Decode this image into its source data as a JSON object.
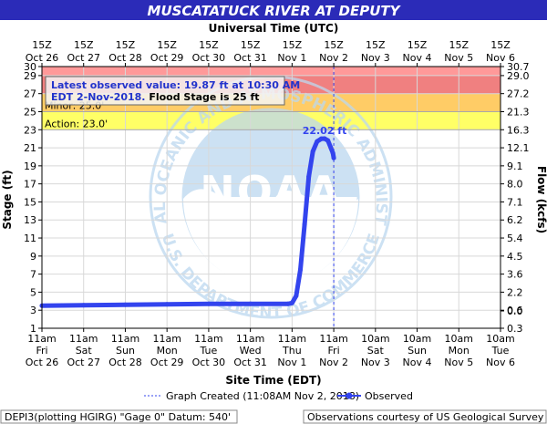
{
  "chart_data": {
    "type": "line",
    "title": "MUSCATATUCK RIVER AT DEPUTY",
    "top_axis_title": "Universal Time (UTC)",
    "top_labels": [
      [
        "15Z",
        "Oct 26"
      ],
      [
        "15Z",
        "Oct 27"
      ],
      [
        "15Z",
        "Oct 28"
      ],
      [
        "15Z",
        "Oct 29"
      ],
      [
        "15Z",
        "Oct 30"
      ],
      [
        "15Z",
        "Oct 31"
      ],
      [
        "15Z",
        "Nov 1"
      ],
      [
        "15Z",
        "Nov 2"
      ],
      [
        "15Z",
        "Nov 3"
      ],
      [
        "15Z",
        "Nov 4"
      ],
      [
        "15Z",
        "Nov 5"
      ],
      [
        "15Z",
        "Nov 6"
      ]
    ],
    "bottom_labels": [
      [
        "11am",
        "Fri",
        "Oct 26"
      ],
      [
        "11am",
        "Sat",
        "Oct 27"
      ],
      [
        "11am",
        "Sun",
        "Oct 28"
      ],
      [
        "11am",
        "Mon",
        "Oct 29"
      ],
      [
        "11am",
        "Tue",
        "Oct 30"
      ],
      [
        "11am",
        "Wed",
        "Oct 31"
      ],
      [
        "11am",
        "Thu",
        "Nov 1"
      ],
      [
        "11am",
        "Fri",
        "Nov 2"
      ],
      [
        "10am",
        "Sat",
        "Nov 3"
      ],
      [
        "10am",
        "Sun",
        "Nov 4"
      ],
      [
        "10am",
        "Mon",
        "Nov 5"
      ],
      [
        "10am",
        "Tue",
        "Nov 6"
      ]
    ],
    "xlabel": "Site Time (EDT)",
    "ylabel": "Stage (ft)",
    "y2label": "Flow (kcfs)",
    "ylim": [
      1,
      30
    ],
    "yticks": [
      1,
      3,
      5,
      7,
      9,
      11,
      13,
      15,
      17,
      19,
      21,
      23,
      25,
      27,
      29,
      30
    ],
    "y2ticks": [
      [
        30,
        "30.7"
      ],
      [
        29,
        "29.0"
      ],
      [
        27,
        "27.2"
      ],
      [
        25,
        "21.3"
      ],
      [
        23,
        "16.3"
      ],
      [
        21,
        "12.1"
      ],
      [
        19,
        "9.1"
      ],
      [
        17,
        "8.0"
      ],
      [
        15,
        "7.1"
      ],
      [
        13,
        "6.2"
      ],
      [
        11,
        "5.4"
      ],
      [
        9,
        "4.5"
      ],
      [
        7,
        "3.6"
      ],
      [
        5,
        "2.2"
      ],
      [
        3,
        "0.6"
      ],
      [
        1,
        "0.3"
      ],
      [
        -1,
        "0.0"
      ]
    ],
    "xlim": [
      0,
      11
    ],
    "graph_created_x": 7,
    "bands": [
      {
        "from": 29,
        "to": 30,
        "color": "#ff9999"
      },
      {
        "from": 27,
        "to": 29,
        "color": "#f08080"
      },
      {
        "from": 25,
        "to": 27,
        "color": "#ffcc66"
      },
      {
        "from": 23,
        "to": 25,
        "color": "#ffff66"
      }
    ],
    "thresholds": [
      {
        "label": "Minor: 25.0'",
        "value": 25
      },
      {
        "label": "Action: 23.0'",
        "value": 23
      }
    ],
    "peak_label": "22.02 ft",
    "peak": [
      6.78,
      22.02
    ],
    "series": [
      {
        "name": "Observed",
        "color": "#3344ee",
        "points": [
          [
            0,
            3.5
          ],
          [
            1,
            3.55
          ],
          [
            2,
            3.6
          ],
          [
            3,
            3.65
          ],
          [
            4,
            3.7
          ],
          [
            5,
            3.7
          ],
          [
            5.9,
            3.7
          ],
          [
            6,
            3.8
          ],
          [
            6.1,
            4.6
          ],
          [
            6.2,
            7.5
          ],
          [
            6.3,
            12.5
          ],
          [
            6.4,
            17.8
          ],
          [
            6.5,
            20.6
          ],
          [
            6.6,
            21.7
          ],
          [
            6.7,
            22.0
          ],
          [
            6.78,
            22.02
          ],
          [
            6.86,
            21.8
          ],
          [
            6.93,
            21.0
          ],
          [
            6.98,
            20.4
          ],
          [
            7.0,
            19.87
          ]
        ]
      }
    ]
  },
  "legend_box": {
    "line1": "Latest observed value: 19.87 ft at 10:30 AM",
    "line2_blue": "EDT 2-Nov-2018.",
    "line2_black": " Flood Stage is 25 ft"
  },
  "legend": {
    "graph_created": "Graph Created (11:08AM Nov 2, 2018)",
    "observed": "Observed"
  },
  "footer": {
    "left": "DEPI3(plotting HGIRG) \"Gage 0\" Datum: 540'",
    "right": "Observations courtesy of US Geological Survey"
  },
  "colors": {
    "title_bg": "#2b2bb8",
    "series": "#3344ee",
    "watermark": "#bcd8ef"
  },
  "watermark": {
    "logo": "NOAA",
    "ring_text": "NATIONAL OCEANIC AND ATMOSPHERIC ADMINISTRATION",
    "ring_text_bottom": "U.S. DEPARTMENT OF COMMERCE"
  }
}
